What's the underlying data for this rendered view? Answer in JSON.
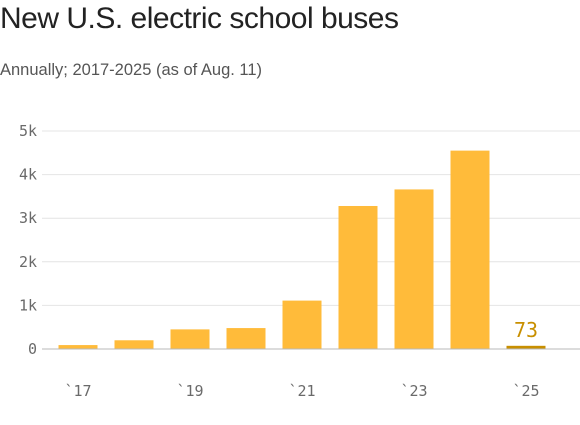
{
  "title": "New U.S. electric school buses",
  "subtitle": "Annually; 2017-2025 (as of Aug. 11)",
  "colors": {
    "bar": "#ffbb3a",
    "highlight_bar": "#c88f00",
    "highlight_label": "#c88f00",
    "grid": "#e4e4e4",
    "axis": "#b8b8b8"
  },
  "chart_data": {
    "type": "bar",
    "categories": [
      "2017",
      "2018",
      "2019",
      "2020",
      "2021",
      "2022",
      "2023",
      "2024",
      "2025"
    ],
    "values": [
      90,
      200,
      450,
      480,
      1110,
      3280,
      3660,
      4550,
      73
    ],
    "ylim": [
      0,
      5000
    ],
    "yticks": [
      0,
      1000,
      2000,
      3000,
      4000,
      5000
    ],
    "ytick_labels": [
      "0",
      "1k",
      "2k",
      "3k",
      "4k",
      "5k"
    ],
    "xtick_labels": [
      "`17",
      "`19",
      "`21",
      "`23",
      "`25"
    ],
    "xtick_categories": [
      "2017",
      "2019",
      "2021",
      "2023",
      "2025"
    ],
    "data_labels": [
      {
        "category": "2025",
        "text": "73"
      }
    ],
    "highlight_category": "2025",
    "grid": true,
    "legend": "none"
  }
}
